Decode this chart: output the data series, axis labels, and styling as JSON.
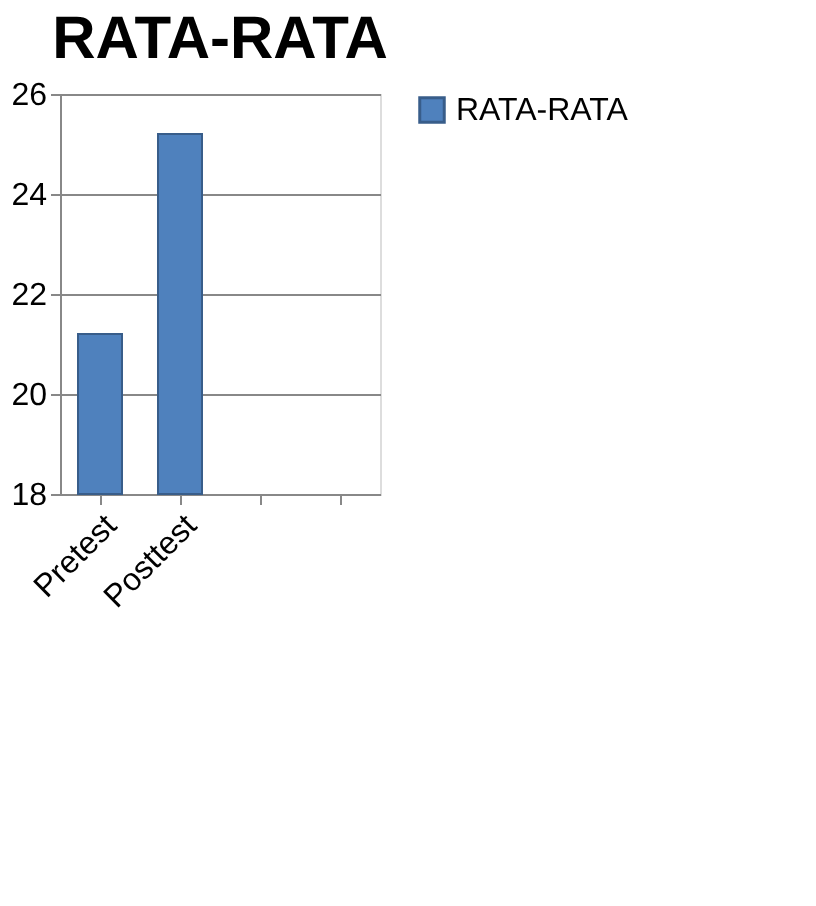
{
  "chart_data": {
    "type": "bar",
    "title": "RATA-RATA",
    "categories": [
      "Pretest",
      "Posttest",
      null,
      null
    ],
    "series": [
      {
        "name": "RATA-RATA",
        "color": "#4f81bd",
        "values": [
          21.2,
          25.2,
          null,
          null
        ]
      }
    ],
    "ylim": [
      18,
      26
    ],
    "yticks": [
      18,
      20,
      22,
      24,
      26
    ],
    "grid": "y",
    "legend": "right"
  }
}
